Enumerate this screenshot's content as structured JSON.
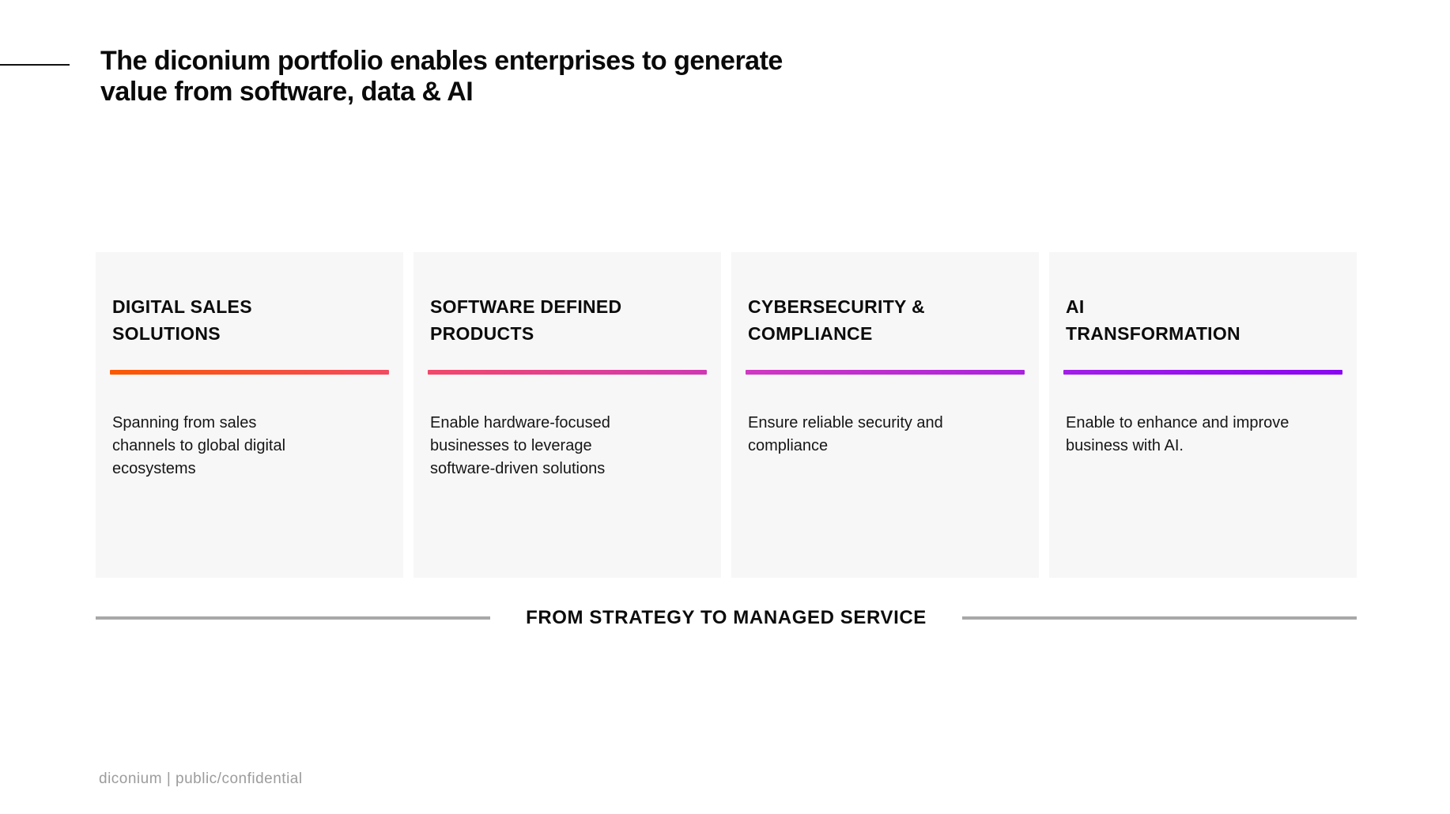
{
  "slide": {
    "title_lines": [
      "The diconium portfolio enables enterprises to generate",
      "value from software, data & AI"
    ],
    "cards": [
      {
        "title_lines": [
          "DIGITAL SALES",
          "SOLUTIONS"
        ],
        "desc_lines": [
          "Spanning from sales",
          "channels to global digital",
          "ecosystems"
        ],
        "gradient_start": "#FB5900",
        "gradient_end": "#F24A60"
      },
      {
        "title_lines": [
          "SOFTWARE DEFINED",
          "PRODUCTS"
        ],
        "desc_lines": [
          "Enable hardware-focused",
          "businesses to leverage",
          "software-driven solutions"
        ],
        "gradient_start": "#F2486B",
        "gradient_end": "#CF38B4"
      },
      {
        "title_lines": [
          "CYBERSECURITY &",
          "COMPLIANCE"
        ],
        "desc_lines": [
          "Ensure reliable security and",
          "compliance"
        ],
        "gradient_start": "#D039C2",
        "gradient_end": "#A922DE"
      },
      {
        "title_lines": [
          "AI",
          "TRANSFORMATION"
        ],
        "desc_lines": [
          "Enable to enhance and improve",
          "business with AI."
        ],
        "gradient_start": "#A21EE8",
        "gradient_end": "#8A06F2"
      }
    ],
    "banner_text": "FROM STRATEGY TO MANAGED SERVICE",
    "footer_text": "diconium | public/confidential",
    "colors": {
      "card_background": "#f7f7f7",
      "divider_gray": "#a8a8a8",
      "footer_gray": "#9c9c9c"
    }
  }
}
